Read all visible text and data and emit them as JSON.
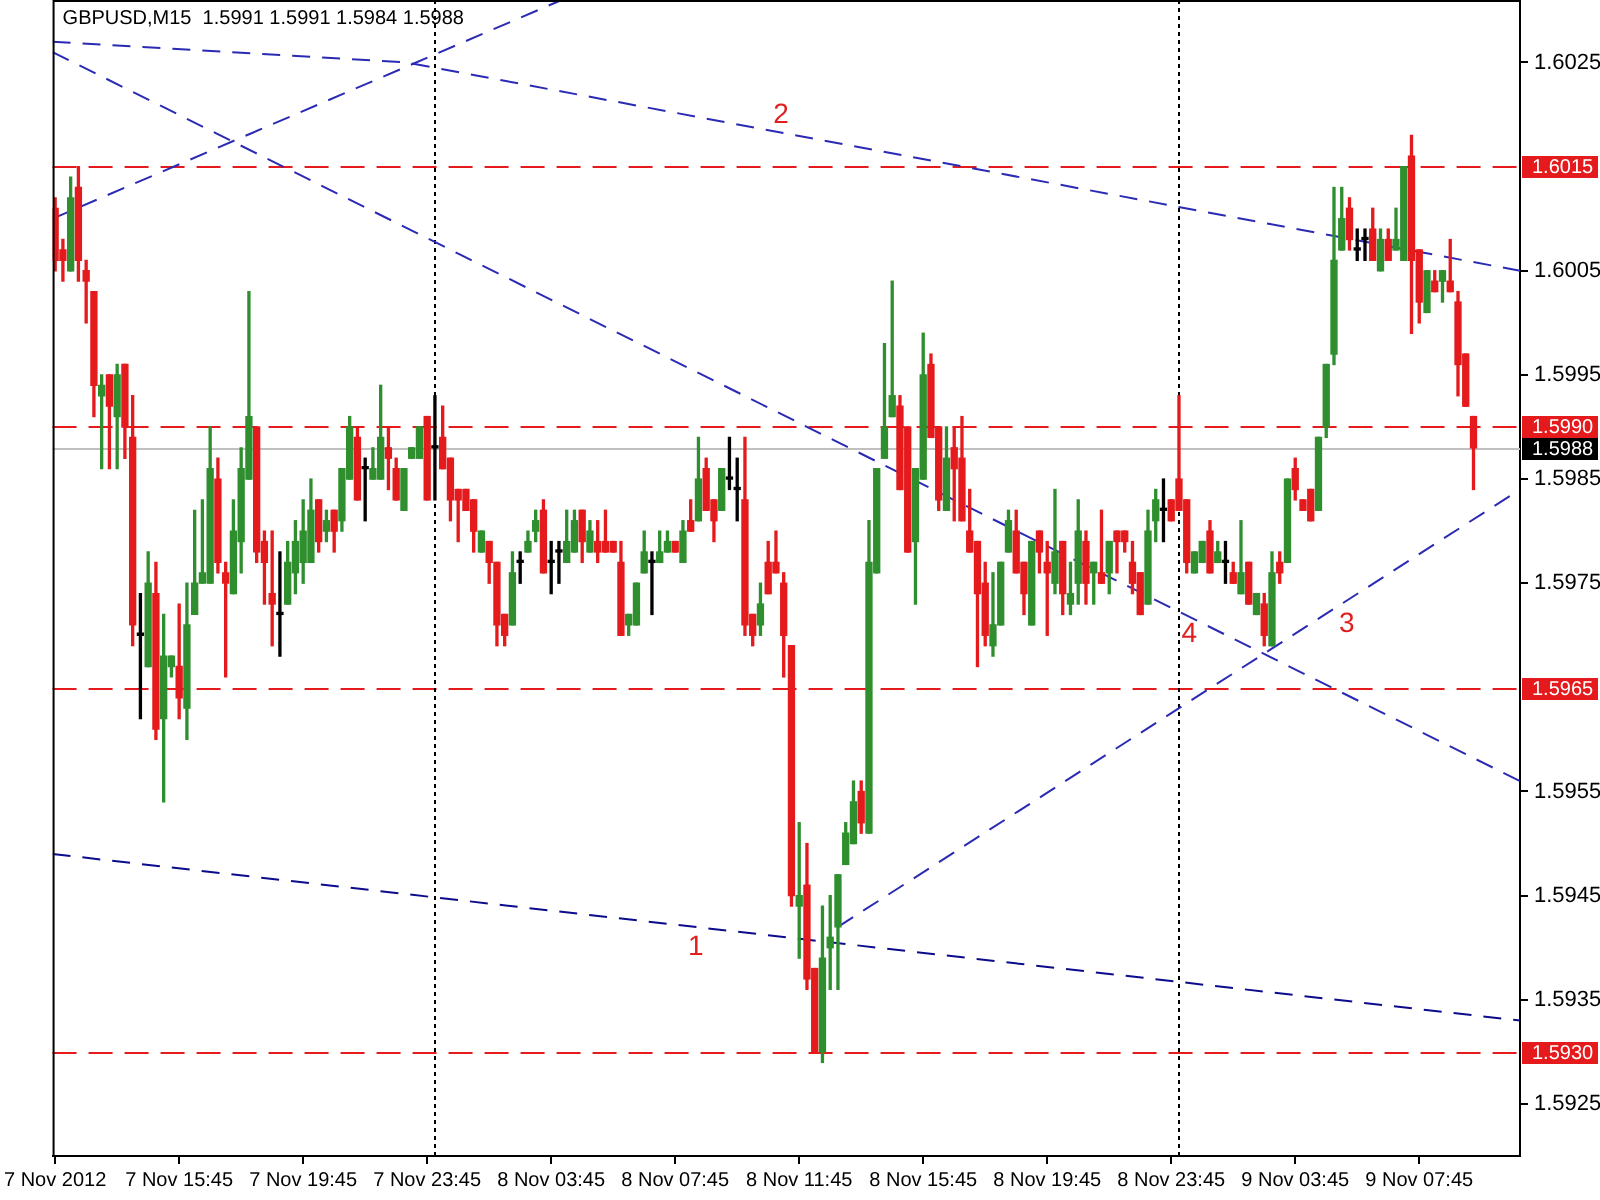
{
  "chart_data": {
    "type": "candlestick",
    "title": "GBPUSD,M15  1.5991 1.5991 1.5984 1.5988",
    "xlim": [
      "2012-11-07T11:40",
      "2012-11-09T11:00"
    ],
    "xticks": [
      {
        "value": "2012-11-07T11:45",
        "label": "7 Nov 2012"
      },
      {
        "value": "2012-11-07T15:45",
        "label": "7 Nov 15:45"
      },
      {
        "value": "2012-11-07T19:45",
        "label": "7 Nov 19:45"
      },
      {
        "value": "2012-11-07T23:45",
        "label": "7 Nov 23:45"
      },
      {
        "value": "2012-11-08T03:45",
        "label": "8 Nov 03:45"
      },
      {
        "value": "2012-11-08T07:45",
        "label": "8 Nov 07:45"
      },
      {
        "value": "2012-11-08T11:45",
        "label": "8 Nov 11:45"
      },
      {
        "value": "2012-11-08T15:45",
        "label": "8 Nov 15:45"
      },
      {
        "value": "2012-11-08T19:45",
        "label": "8 Nov 19:45"
      },
      {
        "value": "2012-11-08T23:45",
        "label": "8 Nov 23:45"
      },
      {
        "value": "2012-11-09T03:45",
        "label": "9 Nov 03:45"
      },
      {
        "value": "2012-11-09T07:45",
        "label": "9 Nov 07:45"
      }
    ],
    "ylim": [
      1.592,
      1.6031
    ],
    "yticks": [
      1.6025,
      1.6005,
      1.5995,
      1.5985,
      1.5975,
      1.5955,
      1.5945,
      1.5935,
      1.5925
    ],
    "series": [
      {
        "x": [
          "2012-11-07T11:45",
          "2012-11-07T12:00",
          "2012-11-07T12:15",
          "2012-11-07T12:30",
          "2012-11-07T12:45",
          "2012-11-07T13:00",
          "2012-11-07T13:15",
          "2012-11-07T13:30",
          "2012-11-07T13:45",
          "2012-11-07T14:00",
          "2012-11-07T14:15",
          "2012-11-07T14:30",
          "2012-11-07T14:45",
          "2012-11-07T15:00",
          "2012-11-07T15:15",
          "2012-11-07T15:30",
          "2012-11-07T15:45",
          "2012-11-07T16:00",
          "2012-11-07T16:15",
          "2012-11-07T16:30",
          "2012-11-07T16:45",
          "2012-11-07T17:00",
          "2012-11-07T17:15",
          "2012-11-07T17:30",
          "2012-11-07T17:45",
          "2012-11-07T18:00",
          "2012-11-07T18:15",
          "2012-11-07T18:30",
          "2012-11-07T18:45",
          "2012-11-07T19:00",
          "2012-11-07T19:15",
          "2012-11-07T19:30",
          "2012-11-07T19:45",
          "2012-11-07T20:00",
          "2012-11-07T20:15",
          "2012-11-07T20:30",
          "2012-11-07T20:45",
          "2012-11-07T21:00",
          "2012-11-07T21:15",
          "2012-11-07T21:30",
          "2012-11-07T21:45",
          "2012-11-07T22:00",
          "2012-11-07T22:15",
          "2012-11-07T22:30",
          "2012-11-07T22:45",
          "2012-11-07T23:00",
          "2012-11-07T23:15",
          "2012-11-07T23:30",
          "2012-11-07T23:45",
          "2012-11-08T00:00",
          "2012-11-08T00:15",
          "2012-11-08T00:30",
          "2012-11-08T00:45",
          "2012-11-08T01:00",
          "2012-11-08T01:15",
          "2012-11-08T01:30",
          "2012-11-08T01:45",
          "2012-11-08T02:00",
          "2012-11-08T02:15",
          "2012-11-08T02:30",
          "2012-11-08T02:45",
          "2012-11-08T03:00",
          "2012-11-08T03:15",
          "2012-11-08T03:30",
          "2012-11-08T03:45",
          "2012-11-08T04:00",
          "2012-11-08T04:15",
          "2012-11-08T04:30",
          "2012-11-08T04:45",
          "2012-11-08T05:00",
          "2012-11-08T05:15",
          "2012-11-08T05:30",
          "2012-11-08T05:45",
          "2012-11-08T06:00",
          "2012-11-08T06:15",
          "2012-11-08T06:30",
          "2012-11-08T06:45",
          "2012-11-08T07:00",
          "2012-11-08T07:15",
          "2012-11-08T07:30",
          "2012-11-08T07:45",
          "2012-11-08T08:00",
          "2012-11-08T08:15",
          "2012-11-08T08:30",
          "2012-11-08T08:45",
          "2012-11-08T09:00",
          "2012-11-08T09:15",
          "2012-11-08T09:30",
          "2012-11-08T09:45",
          "2012-11-08T10:00",
          "2012-11-08T10:15",
          "2012-11-08T10:30",
          "2012-11-08T10:45",
          "2012-11-08T11:00",
          "2012-11-08T11:15",
          "2012-11-08T11:30",
          "2012-11-08T11:45",
          "2012-11-08T12:00",
          "2012-11-08T12:15",
          "2012-11-08T12:30",
          "2012-11-08T12:45",
          "2012-11-08T13:00",
          "2012-11-08T13:15",
          "2012-11-08T13:30",
          "2012-11-08T13:45",
          "2012-11-08T14:00",
          "2012-11-08T14:15",
          "2012-11-08T14:30",
          "2012-11-08T14:45",
          "2012-11-08T15:00",
          "2012-11-08T15:15",
          "2012-11-08T15:30",
          "2012-11-08T15:45",
          "2012-11-08T16:00",
          "2012-11-08T16:15",
          "2012-11-08T16:30",
          "2012-11-08T16:45",
          "2012-11-08T17:00",
          "2012-11-08T17:15",
          "2012-11-08T17:30",
          "2012-11-08T17:45",
          "2012-11-08T18:00",
          "2012-11-08T18:15",
          "2012-11-08T18:30",
          "2012-11-08T18:45",
          "2012-11-08T19:00",
          "2012-11-08T19:15",
          "2012-11-08T19:30",
          "2012-11-08T19:45",
          "2012-11-08T20:00",
          "2012-11-08T20:15",
          "2012-11-08T20:30",
          "2012-11-08T20:45",
          "2012-11-08T21:00",
          "2012-11-08T21:15",
          "2012-11-08T21:30",
          "2012-11-08T21:45",
          "2012-11-08T22:00",
          "2012-11-08T22:15",
          "2012-11-08T22:30",
          "2012-11-08T22:45",
          "2012-11-08T23:00",
          "2012-11-08T23:15",
          "2012-11-08T23:30",
          "2012-11-08T23:45",
          "2012-11-09T00:00",
          "2012-11-09T00:15",
          "2012-11-09T00:30",
          "2012-11-09T00:45",
          "2012-11-09T01:00",
          "2012-11-09T01:15",
          "2012-11-09T01:30",
          "2012-11-09T01:45",
          "2012-11-09T02:00",
          "2012-11-09T02:15",
          "2012-11-09T02:30",
          "2012-11-09T02:45",
          "2012-11-09T03:00",
          "2012-11-09T03:15",
          "2012-11-09T03:30",
          "2012-11-09T03:45",
          "2012-11-09T04:00",
          "2012-11-09T04:15",
          "2012-11-09T04:30",
          "2012-11-09T04:45",
          "2012-11-09T05:00",
          "2012-11-09T05:15",
          "2012-11-09T05:30",
          "2012-11-09T05:45",
          "2012-11-09T06:00",
          "2012-11-09T06:15",
          "2012-11-09T06:30",
          "2012-11-09T06:45",
          "2012-11-09T07:00",
          "2012-11-09T07:15",
          "2012-11-09T07:30",
          "2012-11-09T07:45",
          "2012-11-09T08:00",
          "2012-11-09T08:15",
          "2012-11-09T08:30",
          "2012-11-09T08:45",
          "2012-11-09T09:00",
          "2012-11-09T09:15",
          "2012-11-09T09:30"
        ],
        "ohlc": [
          [
            1.6011,
            1.6012,
            1.6005,
            1.6006
          ],
          [
            1.6007,
            1.6008,
            1.6004,
            1.6006
          ],
          [
            1.6005,
            1.6014,
            1.6005,
            1.6012
          ],
          [
            1.6013,
            1.6015,
            1.6004,
            1.6006
          ],
          [
            1.6005,
            1.6006,
            1.6,
            1.6004
          ],
          [
            1.6003,
            1.6003,
            1.5991,
            1.5994
          ],
          [
            1.5993,
            1.5995,
            1.5986,
            1.5994
          ],
          [
            1.5995,
            1.5995,
            1.5986,
            1.5992
          ],
          [
            1.5991,
            1.5996,
            1.5986,
            1.5995
          ],
          [
            1.5996,
            1.5996,
            1.5987,
            1.599
          ],
          [
            1.5989,
            1.5993,
            1.5969,
            1.5971
          ],
          [
            1.597,
            1.5974,
            1.5962,
            1.597
          ],
          [
            1.5967,
            1.5978,
            1.5967,
            1.5975
          ],
          [
            1.5974,
            1.5977,
            1.596,
            1.5961
          ],
          [
            1.5962,
            1.5972,
            1.5954,
            1.5968
          ],
          [
            1.5967,
            1.5968,
            1.5966,
            1.5968
          ],
          [
            1.5967,
            1.5973,
            1.5962,
            1.5964
          ],
          [
            1.5963,
            1.5975,
            1.596,
            1.5971
          ],
          [
            1.5972,
            1.5982,
            1.5972,
            1.5975
          ],
          [
            1.5975,
            1.5983,
            1.5975,
            1.5976
          ],
          [
            1.5975,
            1.599,
            1.5975,
            1.5986
          ],
          [
            1.5985,
            1.5987,
            1.5976,
            1.5977
          ],
          [
            1.5976,
            1.5977,
            1.5966,
            1.5975
          ],
          [
            1.5974,
            1.5983,
            1.5974,
            1.598
          ],
          [
            1.5979,
            1.5988,
            1.5976,
            1.5986
          ],
          [
            1.5985,
            1.6003,
            1.5985,
            1.5991
          ],
          [
            1.599,
            1.599,
            1.5977,
            1.5978
          ],
          [
            1.5979,
            1.598,
            1.5973,
            1.5977
          ],
          [
            1.5974,
            1.598,
            1.5969,
            1.5973
          ],
          [
            1.5972,
            1.5978,
            1.5968,
            1.5972
          ],
          [
            1.5973,
            1.5979,
            1.5973,
            1.5977
          ],
          [
            1.5976,
            1.5981,
            1.5974,
            1.5979
          ],
          [
            1.5977,
            1.5983,
            1.5975,
            1.598
          ],
          [
            1.5977,
            1.5985,
            1.5977,
            1.5982
          ],
          [
            1.5983,
            1.5983,
            1.5978,
            1.5979
          ],
          [
            1.598,
            1.5982,
            1.5979,
            1.5981
          ],
          [
            1.5982,
            1.5982,
            1.5978,
            1.598
          ],
          [
            1.5981,
            1.5986,
            1.598,
            1.5986
          ],
          [
            1.5985,
            1.5991,
            1.5985,
            1.599
          ],
          [
            1.5989,
            1.599,
            1.5983,
            1.5983
          ],
          [
            1.5986,
            1.5987,
            1.5981,
            1.5986
          ],
          [
            1.5985,
            1.5988,
            1.5985,
            1.5986
          ],
          [
            1.5985,
            1.5994,
            1.5985,
            1.5989
          ],
          [
            1.5988,
            1.599,
            1.5984,
            1.5987
          ],
          [
            1.5986,
            1.5987,
            1.5983,
            1.5983
          ],
          [
            1.5982,
            1.5986,
            1.5982,
            1.5986
          ],
          [
            1.5987,
            1.5988,
            1.5987,
            1.5988
          ],
          [
            1.5987,
            1.599,
            1.5987,
            1.599
          ],
          [
            1.5991,
            1.5991,
            1.5983,
            1.5983
          ],
          [
            1.5988,
            1.5993,
            1.5983,
            1.5988
          ],
          [
            1.5989,
            1.5992,
            1.5986,
            1.5986
          ],
          [
            1.5987,
            1.5987,
            1.5981,
            1.5983
          ],
          [
            1.5984,
            1.5984,
            1.5979,
            1.5983
          ],
          [
            1.5984,
            1.5984,
            1.5982,
            1.5982
          ],
          [
            1.5983,
            1.5983,
            1.5978,
            1.598
          ],
          [
            1.5978,
            1.598,
            1.5978,
            1.598
          ],
          [
            1.5979,
            1.5979,
            1.5975,
            1.5977
          ],
          [
            1.5977,
            1.5977,
            1.5969,
            1.5971
          ],
          [
            1.5972,
            1.5972,
            1.5969,
            1.597
          ],
          [
            1.5971,
            1.5978,
            1.5971,
            1.5976
          ],
          [
            1.5977,
            1.5978,
            1.5975,
            1.5977
          ],
          [
            1.5978,
            1.598,
            1.5978,
            1.5979
          ],
          [
            1.598,
            1.5982,
            1.5979,
            1.5981
          ],
          [
            1.5982,
            1.5983,
            1.5976,
            1.5976
          ],
          [
            1.5977,
            1.5979,
            1.5974,
            1.5977
          ],
          [
            1.5978,
            1.5979,
            1.5975,
            1.5978
          ],
          [
            1.5977,
            1.5982,
            1.5977,
            1.5979
          ],
          [
            1.5978,
            1.5982,
            1.5978,
            1.5981
          ],
          [
            1.5982,
            1.5982,
            1.5977,
            1.5979
          ],
          [
            1.5978,
            1.5981,
            1.5978,
            1.598
          ],
          [
            1.5979,
            1.5981,
            1.5977,
            1.5978
          ],
          [
            1.5979,
            1.5982,
            1.5978,
            1.5978
          ],
          [
            1.5979,
            1.5979,
            1.5978,
            1.5978
          ],
          [
            1.5977,
            1.5979,
            1.597,
            1.597
          ],
          [
            1.5971,
            1.5972,
            1.597,
            1.5972
          ],
          [
            1.5971,
            1.5975,
            1.5971,
            1.5975
          ],
          [
            1.5976,
            1.598,
            1.5976,
            1.5978
          ],
          [
            1.5977,
            1.5978,
            1.5972,
            1.5977
          ],
          [
            1.5977,
            1.598,
            1.5977,
            1.5978
          ],
          [
            1.5978,
            1.598,
            1.5978,
            1.5979
          ],
          [
            1.5979,
            1.5979,
            1.5978,
            1.5978
          ],
          [
            1.5977,
            1.5981,
            1.5977,
            1.598
          ],
          [
            1.5981,
            1.5983,
            1.598,
            1.598
          ],
          [
            1.5981,
            1.5989,
            1.5981,
            1.5985
          ],
          [
            1.5986,
            1.5987,
            1.5982,
            1.5982
          ],
          [
            1.5983,
            1.5983,
            1.5979,
            1.5981
          ],
          [
            1.5982,
            1.5986,
            1.5982,
            1.5986
          ],
          [
            1.5985,
            1.5989,
            1.5984,
            1.5985
          ],
          [
            1.5984,
            1.5987,
            1.5981,
            1.5984
          ],
          [
            1.5983,
            1.5989,
            1.597,
            1.5971
          ],
          [
            1.5972,
            1.5972,
            1.5969,
            1.597
          ],
          [
            1.5971,
            1.5975,
            1.597,
            1.5973
          ],
          [
            1.5977,
            1.5979,
            1.5974,
            1.5974
          ],
          [
            1.5977,
            1.598,
            1.5976,
            1.5976
          ],
          [
            1.5975,
            1.5976,
            1.5966,
            1.597
          ],
          [
            1.5969,
            1.5969,
            1.5944,
            1.5945
          ],
          [
            1.5944,
            1.5952,
            1.5939,
            1.5945
          ],
          [
            1.5946,
            1.595,
            1.5936,
            1.5937
          ],
          [
            1.5938,
            1.5938,
            1.593,
            1.593
          ],
          [
            1.593,
            1.5944,
            1.5929,
            1.5939
          ],
          [
            1.594,
            1.5945,
            1.5936,
            1.5941
          ],
          [
            1.5942,
            1.5947,
            1.5936,
            1.5947
          ],
          [
            1.5948,
            1.5952,
            1.5948,
            1.5951
          ],
          [
            1.595,
            1.5956,
            1.595,
            1.5954
          ],
          [
            1.5955,
            1.5956,
            1.5951,
            1.5952
          ],
          [
            1.5951,
            1.5981,
            1.5951,
            1.5977
          ],
          [
            1.5976,
            1.5986,
            1.5976,
            1.5986
          ],
          [
            1.5987,
            1.5998,
            1.5987,
            1.599
          ],
          [
            1.5991,
            1.6004,
            1.5991,
            1.5993
          ],
          [
            1.5992,
            1.5993,
            1.5984,
            1.5984
          ],
          [
            1.599,
            1.599,
            1.5978,
            1.5978
          ],
          [
            1.5979,
            1.5986,
            1.5973,
            1.5986
          ],
          [
            1.5985,
            1.5999,
            1.5985,
            1.5995
          ],
          [
            1.5996,
            1.5997,
            1.5989,
            1.5989
          ],
          [
            1.599,
            1.599,
            1.5982,
            1.5983
          ],
          [
            1.5982,
            1.599,
            1.5982,
            1.5987
          ],
          [
            1.5988,
            1.599,
            1.5981,
            1.5986
          ],
          [
            1.5987,
            1.5991,
            1.5981,
            1.5981
          ],
          [
            1.598,
            1.5984,
            1.5978,
            1.5978
          ],
          [
            1.5979,
            1.5979,
            1.5967,
            1.5974
          ],
          [
            1.5975,
            1.5977,
            1.5969,
            1.597
          ],
          [
            1.5969,
            1.5976,
            1.5968,
            1.5971
          ],
          [
            1.5971,
            1.5977,
            1.5971,
            1.5977
          ],
          [
            1.5978,
            1.5982,
            1.5978,
            1.5981
          ],
          [
            1.598,
            1.5982,
            1.5976,
            1.5976
          ],
          [
            1.5977,
            1.5977,
            1.5972,
            1.5974
          ],
          [
            1.5971,
            1.5979,
            1.5971,
            1.5979
          ],
          [
            1.598,
            1.598,
            1.5976,
            1.5978
          ],
          [
            1.5977,
            1.5979,
            1.597,
            1.5976
          ],
          [
            1.5975,
            1.5984,
            1.5974,
            1.5978
          ],
          [
            1.5979,
            1.5979,
            1.5972,
            1.5974
          ],
          [
            1.5973,
            1.5977,
            1.5972,
            1.5974
          ],
          [
            1.5975,
            1.5983,
            1.5973,
            1.598
          ],
          [
            1.5979,
            1.598,
            1.5973,
            1.5975
          ],
          [
            1.5976,
            1.5977,
            1.5973,
            1.5977
          ],
          [
            1.5976,
            1.5982,
            1.5975,
            1.5975
          ],
          [
            1.5976,
            1.5979,
            1.5974,
            1.5979
          ],
          [
            1.598,
            1.598,
            1.5976,
            1.5979
          ],
          [
            1.598,
            1.598,
            1.5978,
            1.5979
          ],
          [
            1.5977,
            1.5979,
            1.5974,
            1.5975
          ],
          [
            1.5976,
            1.5976,
            1.5972,
            1.5972
          ],
          [
            1.5973,
            1.5982,
            1.5973,
            1.598
          ],
          [
            1.5981,
            1.5984,
            1.5979,
            1.5983
          ],
          [
            1.5982,
            1.5985,
            1.5979,
            1.5982
          ],
          [
            1.5983,
            1.5983,
            1.5981,
            1.5981
          ],
          [
            1.5985,
            1.5993,
            1.5982,
            1.5982
          ],
          [
            1.5983,
            1.5983,
            1.5976,
            1.5977
          ],
          [
            1.5976,
            1.5978,
            1.5976,
            1.5978
          ],
          [
            1.5977,
            1.5979,
            1.5977,
            1.5979
          ],
          [
            1.598,
            1.5981,
            1.5976,
            1.5976
          ],
          [
            1.5977,
            1.5979,
            1.5977,
            1.5978
          ],
          [
            1.5977,
            1.5979,
            1.5975,
            1.5977
          ],
          [
            1.5976,
            1.5977,
            1.5975,
            1.5975
          ],
          [
            1.5974,
            1.5981,
            1.5974,
            1.5976
          ],
          [
            1.5977,
            1.5977,
            1.5973,
            1.5973
          ],
          [
            1.5972,
            1.5974,
            1.5972,
            1.5974
          ],
          [
            1.5973,
            1.5974,
            1.5969,
            1.597
          ],
          [
            1.5969,
            1.5978,
            1.5969,
            1.5976
          ],
          [
            1.5977,
            1.5978,
            1.5975,
            1.5976
          ],
          [
            1.5977,
            1.5985,
            1.5977,
            1.5985
          ],
          [
            1.5986,
            1.5987,
            1.5983,
            1.5984
          ],
          [
            1.5983,
            1.5983,
            1.5982,
            1.5982
          ],
          [
            1.5984,
            1.5984,
            1.5981,
            1.5981
          ],
          [
            1.5982,
            1.5989,
            1.5982,
            1.5989
          ],
          [
            1.599,
            1.5996,
            1.5989,
            1.5996
          ],
          [
            1.5997,
            1.6013,
            1.5996,
            1.6006
          ],
          [
            1.6007,
            1.6013,
            1.6007,
            1.601
          ],
          [
            1.6011,
            1.6012,
            1.6007,
            1.6008
          ],
          [
            1.6007,
            1.6009,
            1.6006,
            1.6007
          ],
          [
            1.6008,
            1.6009,
            1.6006,
            1.6008
          ],
          [
            1.6009,
            1.6011,
            1.6006,
            1.6006
          ],
          [
            1.6005,
            1.6009,
            1.6005,
            1.6008
          ],
          [
            1.6008,
            1.6009,
            1.6006,
            1.6006
          ],
          [
            1.6007,
            1.6011,
            1.6007,
            1.6008
          ],
          [
            1.6006,
            1.6015,
            1.6006,
            1.6015
          ],
          [
            1.6016,
            1.6018,
            1.5999,
            1.6006
          ],
          [
            1.6007,
            1.6007,
            1.6,
            1.6002
          ],
          [
            1.6001,
            1.6005,
            1.6001,
            1.6005
          ],
          [
            1.6004,
            1.6005,
            1.6003,
            1.6003
          ],
          [
            1.6004,
            1.6005,
            1.6002,
            1.6005
          ],
          [
            1.6004,
            1.6008,
            1.6003,
            1.6003
          ],
          [
            1.6002,
            1.6003,
            1.5993,
            1.5996
          ],
          [
            1.5997,
            1.5997,
            1.5992,
            1.5992
          ],
          [
            1.5991,
            1.5991,
            1.5984,
            1.5988
          ]
        ],
        "colors": [
          "#e41a1c",
          "#e41a1c",
          "#2f8f2f",
          "#e41a1c",
          "#e41a1c",
          "#e41a1c",
          "#2f8f2f",
          "#e41a1c",
          "#2f8f2f",
          "#e41a1c",
          "#e41a1c",
          "#000000",
          "#2f8f2f",
          "#e41a1c",
          "#2f8f2f",
          "#2f8f2f",
          "#e41a1c",
          "#2f8f2f",
          "#2f8f2f",
          "#2f8f2f",
          "#2f8f2f",
          "#e41a1c",
          "#e41a1c",
          "#2f8f2f",
          "#2f8f2f",
          "#2f8f2f",
          "#e41a1c",
          "#e41a1c",
          "#e41a1c",
          "#000000",
          "#2f8f2f",
          "#2f8f2f",
          "#2f8f2f",
          "#2f8f2f",
          "#e41a1c",
          "#2f8f2f",
          "#e41a1c",
          "#2f8f2f",
          "#2f8f2f",
          "#e41a1c",
          "#000000",
          "#2f8f2f",
          "#2f8f2f",
          "#e41a1c",
          "#e41a1c",
          "#2f8f2f",
          "#2f8f2f",
          "#2f8f2f",
          "#e41a1c",
          "#000000",
          "#e41a1c",
          "#e41a1c",
          "#e41a1c",
          "#e41a1c",
          "#e41a1c",
          "#2f8f2f",
          "#e41a1c",
          "#e41a1c",
          "#e41a1c",
          "#2f8f2f",
          "#000000",
          "#2f8f2f",
          "#2f8f2f",
          "#e41a1c",
          "#000000",
          "#000000",
          "#2f8f2f",
          "#2f8f2f",
          "#e41a1c",
          "#2f8f2f",
          "#e41a1c",
          "#e41a1c",
          "#e41a1c",
          "#e41a1c",
          "#2f8f2f",
          "#2f8f2f",
          "#2f8f2f",
          "#000000",
          "#2f8f2f",
          "#2f8f2f",
          "#e41a1c",
          "#2f8f2f",
          "#e41a1c",
          "#2f8f2f",
          "#e41a1c",
          "#e41a1c",
          "#2f8f2f",
          "#000000",
          "#000000",
          "#e41a1c",
          "#e41a1c",
          "#2f8f2f",
          "#e41a1c",
          "#e41a1c",
          "#e41a1c",
          "#e41a1c",
          "#2f8f2f",
          "#e41a1c",
          "#e41a1c",
          "#2f8f2f",
          "#2f8f2f",
          "#2f8f2f",
          "#2f8f2f",
          "#2f8f2f",
          "#e41a1c",
          "#2f8f2f",
          "#2f8f2f",
          "#2f8f2f",
          "#2f8f2f",
          "#e41a1c",
          "#e41a1c",
          "#2f8f2f",
          "#2f8f2f",
          "#e41a1c",
          "#e41a1c",
          "#2f8f2f",
          "#e41a1c",
          "#e41a1c",
          "#e41a1c",
          "#e41a1c",
          "#e41a1c",
          "#2f8f2f",
          "#2f8f2f",
          "#2f8f2f",
          "#e41a1c",
          "#e41a1c",
          "#2f8f2f",
          "#e41a1c",
          "#e41a1c",
          "#2f8f2f",
          "#e41a1c",
          "#2f8f2f",
          "#2f8f2f",
          "#e41a1c",
          "#2f8f2f",
          "#e41a1c",
          "#2f8f2f",
          "#e41a1c",
          "#e41a1c",
          "#e41a1c",
          "#e41a1c",
          "#2f8f2f",
          "#2f8f2f",
          "#000000",
          "#e41a1c",
          "#e41a1c",
          "#e41a1c",
          "#2f8f2f",
          "#2f8f2f",
          "#e41a1c",
          "#2f8f2f",
          "#000000",
          "#e41a1c",
          "#2f8f2f",
          "#e41a1c",
          "#2f8f2f",
          "#e41a1c",
          "#2f8f2f",
          "#e41a1c",
          "#2f8f2f",
          "#e41a1c",
          "#e41a1c",
          "#e41a1c",
          "#2f8f2f",
          "#2f8f2f",
          "#2f8f2f",
          "#2f8f2f",
          "#e41a1c",
          "#000000",
          "#000000",
          "#e41a1c",
          "#2f8f2f",
          "#e41a1c",
          "#2f8f2f",
          "#2f8f2f",
          "#e41a1c",
          "#e41a1c",
          "#2f8f2f",
          "#e41a1c",
          "#2f8f2f",
          "#e41a1c",
          "#e41a1c",
          "#e41a1c",
          "#e41a1c"
        ]
      },
      {
        "type": "line",
        "x": [
          "2012-11-07T11:40",
          "2012-11-08T04:05"
        ],
        "values": [
          1.601,
          1.6031
        ],
        "color": "#2a2ab4",
        "line_style": "dashed"
      },
      {
        "type": "line",
        "x": [
          "2012-11-07T11:40",
          "2012-11-07T23:05",
          "2012-11-09T11:00"
        ],
        "values": [
          1.6027,
          1.6025,
          1.6005
        ],
        "color": "#2a2ab4",
        "line_style": "dashed"
      },
      {
        "type": "line",
        "x": [
          "2012-11-07T11:40",
          "2012-11-09T11:00"
        ],
        "values": [
          1.6026,
          1.5956
        ],
        "color": "#2a2ab4",
        "line_style": "dashed"
      },
      {
        "type": "line",
        "x": [
          "2012-11-07T11:40",
          "2012-11-09T11:00"
        ],
        "values": [
          1.5949,
          1.5933
        ],
        "color": "#0b0b8c",
        "line_style": "dashed"
      },
      {
        "type": "line",
        "x": [
          "2012-11-08T13:00",
          "2012-11-09T11:00"
        ],
        "values": [
          1.5942,
          1.5984
        ],
        "color": "#2a2ab4",
        "line_style": "dashed"
      }
    ],
    "ref_lines": [
      {
        "axis": "y",
        "value": 1.6015,
        "label": "1.6015",
        "color": "#e41a1c",
        "line_style": "dashed"
      },
      {
        "axis": "y",
        "value": 1.599,
        "label": "1.5990",
        "color": "#e41a1c",
        "line_style": "dashed"
      },
      {
        "axis": "y",
        "value": 1.5965,
        "label": "1.5965",
        "color": "#e41a1c",
        "line_style": "dashed"
      },
      {
        "axis": "y",
        "value": 1.593,
        "label": "1.5930",
        "color": "#e41a1c",
        "line_style": "dashed"
      },
      {
        "axis": "y",
        "value": 1.5988,
        "label": "1.5988",
        "color": "#c0c0c0",
        "line_style": "solid"
      },
      {
        "axis": "x",
        "value": "2012-11-08T00:00",
        "color": "#000000",
        "line_style": "dotted"
      },
      {
        "axis": "x",
        "value": "2012-11-09T00:00",
        "color": "#000000",
        "line_style": "dotted"
      }
    ],
    "annotations": [
      {
        "text": "1",
        "x": "2012-11-08T08:25",
        "y": 1.5942
      },
      {
        "text": "2",
        "x": "2012-11-08T11:10",
        "y": 1.6018
      },
      {
        "text": "3",
        "x": "2012-11-09T05:25",
        "y": 1.5973
      },
      {
        "text": "4",
        "x": "2012-11-09T00:20",
        "y": 1.5972
      }
    ]
  }
}
